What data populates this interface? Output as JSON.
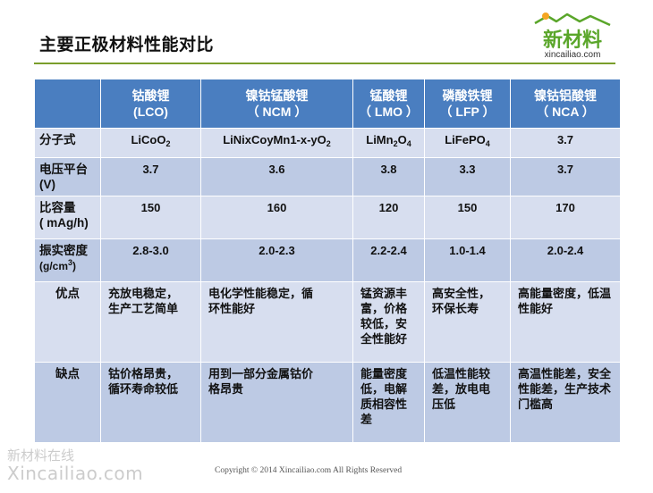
{
  "title": "主要正极材料性能对比",
  "brand": {
    "name": "新材料",
    "domain": "xincailiao.com",
    "colors": {
      "green": "#5aa62a",
      "orange": "#f5a623"
    }
  },
  "table": {
    "columns": [
      {
        "cn": "钴酸锂",
        "abbr": "(LCO)"
      },
      {
        "cn": "镍钴锰酸锂",
        "abbr": "（ NCM ）"
      },
      {
        "cn": "锰酸锂",
        "abbr": "（ LMO ）"
      },
      {
        "cn": "磷酸铁锂",
        "abbr": "（ LFP ）"
      },
      {
        "cn": "镍钴铝酸锂",
        "abbr": "（ NCA ）"
      }
    ],
    "rows": {
      "formula": {
        "label": "分子式",
        "cells": [
          {
            "pre": "LiCoO",
            "s1": "2",
            "mid": "",
            "s2": ""
          },
          {
            "pre": "LiNixCoyMn1-x-yO",
            "s1": "2",
            "mid": "",
            "s2": ""
          },
          {
            "pre": "LiMn",
            "s1": "2",
            "mid": "O",
            "s2": "4"
          },
          {
            "pre": "LiFePO",
            "s1": "4",
            "mid": "",
            "s2": ""
          },
          {
            "pre": "3.7",
            "s1": "",
            "mid": "",
            "s2": ""
          }
        ]
      },
      "voltage": {
        "label": "电压平台(V)",
        "cells": [
          "3.7",
          "3.6",
          "3.8",
          "3.3",
          "3.7"
        ]
      },
      "capacity": {
        "label": "比容量",
        "label2": "( mAg/h)",
        "cells": [
          "150",
          "160",
          "120",
          "150",
          "170"
        ]
      },
      "density": {
        "label": "振实密度",
        "label2_pre": "(g/cm",
        "label2_sup": "3",
        "label2_post": ")",
        "cells": [
          "2.8-3.0",
          "2.0-2.3",
          "2.2-2.4",
          "1.0-1.4",
          "2.0-2.4"
        ]
      },
      "pros": {
        "label": "优点",
        "cells": [
          [
            "充放电稳定，",
            "生产工艺简单"
          ],
          [
            "电化学性能稳定，循",
            "环性能好"
          ],
          [
            "锰资源丰",
            "富，价格",
            "较低，安",
            "全性能好"
          ],
          [
            "高安全性，",
            "环保长寿"
          ],
          [
            "高能量密度，低温",
            "性能好"
          ]
        ]
      },
      "cons": {
        "label": "缺点",
        "cells": [
          [
            "钴价格昂贵，",
            "循环寿命较低"
          ],
          [
            "用到一部分金属钴价",
            "格昂贵"
          ],
          [
            "能量密度",
            "低，电解",
            "质相容性",
            "差"
          ],
          [
            "低温性能较",
            "差，放电电",
            "压低"
          ],
          [
            "高温性能差，安全",
            "性能差，生产技术",
            "门槛高"
          ]
        ]
      }
    }
  },
  "footer": {
    "watermark_cn": "新材料在线",
    "watermark_en": "Xincailiao.com",
    "copyright": "Copyright © 2014  Xincailiao.com    All Rights Reserved"
  }
}
